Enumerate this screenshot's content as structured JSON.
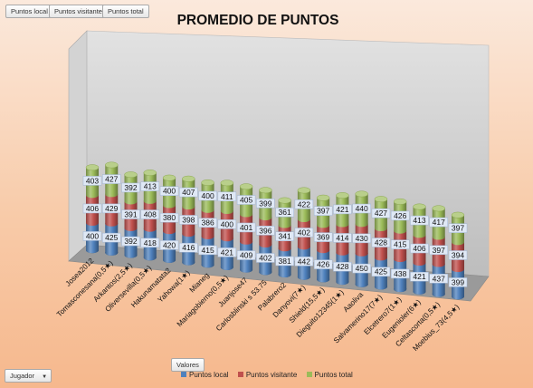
{
  "toolbar": {
    "local_button": "Puntos local",
    "visitor_button": "Puntos visitante",
    "total_button": "Puntos total",
    "values_button": "Valores",
    "category_button": "Jugador"
  },
  "chart_data": {
    "type": "bar",
    "stacked": true,
    "title": "PROMEDIO DE PUNTOS",
    "categories": [
      "Josea2012",
      "Tomasconesana(0,5★)",
      "Arkantos(2,5★)",
      "Oliversevilla(0,5★)",
      "Hakunamatata2",
      "Yahowa(1★)",
      "Mianeg",
      "Mariagobierno(0,5★)",
      "Juanjose47",
      "Carlosblinski s 53.75",
      "Palabrero2",
      "Danyovi(7★)",
      "Shield(15,5★)",
      "Dieguito12345(1★)",
      "Aaoliva",
      "Salvamerino17(7★)",
      "Elcetrero7(1★)",
      "Eugenioler(6★)",
      "Celtascorta(0,5★)",
      "Moebius_73(4,5★)"
    ],
    "series": [
      {
        "name": "Puntos local",
        "color": "#4f81bd",
        "values": [
          400,
          425,
          392,
          418,
          420,
          416,
          415,
          421,
          409,
          402,
          381,
          442,
          426,
          428,
          450,
          425,
          438,
          421,
          437,
          399
        ]
      },
      {
        "name": "Puntos visitante",
        "color": "#c0504d",
        "values": [
          406,
          429,
          391,
          408,
          380,
          398,
          386,
          400,
          401,
          396,
          341,
          402,
          369,
          414,
          430,
          428,
          415,
          406,
          397,
          394
        ]
      },
      {
        "name": "Puntos total",
        "color": "#9bbb59",
        "values": [
          403,
          427,
          392,
          413,
          400,
          407,
          400,
          411,
          405,
          399,
          361,
          422,
          397,
          421,
          440,
          427,
          426,
          413,
          417,
          397
        ]
      }
    ],
    "legend_position": "bottom",
    "gridlines": false,
    "style": "3d-cylinder"
  }
}
